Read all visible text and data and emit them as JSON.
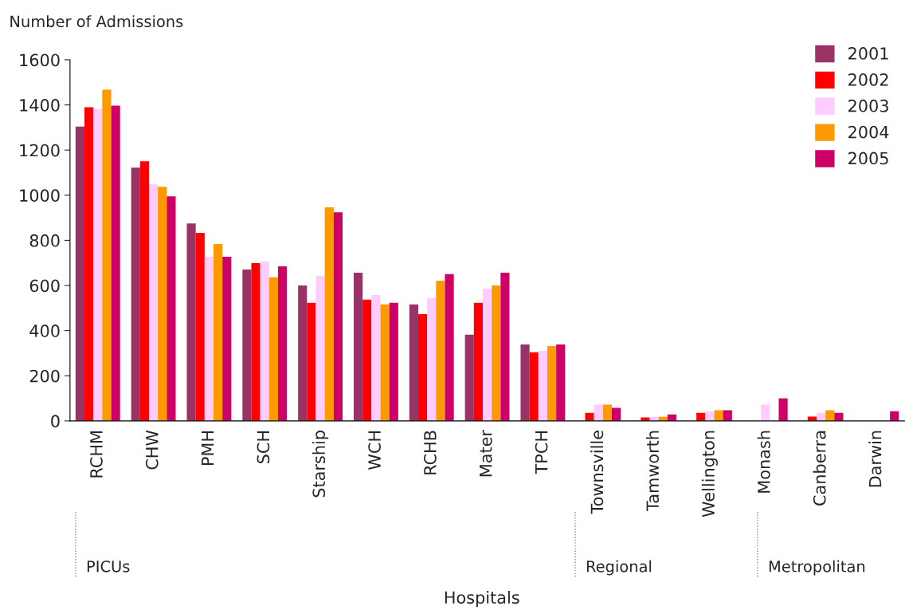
{
  "chart_data": {
    "type": "bar",
    "ylabel": "Number of Admissions",
    "xlabel": "Hospitals",
    "categories": [
      "RCHM",
      "CHW",
      "PMH",
      "SCH",
      "Starship",
      "WCH",
      "RCHB",
      "Mater",
      "TPCH",
      "Townsville",
      "Tamworth",
      "Wellington",
      "Monash",
      "Canberra",
      "Darwin"
    ],
    "series": [
      {
        "name": "2001",
        "color": "#993366",
        "values": [
          1304,
          1122,
          875,
          671,
          600,
          657,
          516,
          382,
          339,
          null,
          null,
          null,
          null,
          null,
          null
        ]
      },
      {
        "name": "2002",
        "color": "#ff0000",
        "values": [
          1390,
          1150,
          833,
          699,
          523,
          537,
          473,
          523,
          304,
          36,
          15,
          36,
          null,
          19,
          null
        ]
      },
      {
        "name": "2003",
        "color": "#ffccff",
        "values": [
          1383,
          1048,
          727,
          706,
          643,
          558,
          544,
          586,
          311,
          72,
          18,
          43,
          72,
          36,
          null
        ]
      },
      {
        "name": "2004",
        "color": "#ff9900",
        "values": [
          1467,
          1037,
          784,
          636,
          946,
          516,
          621,
          600,
          332,
          72,
          18,
          47,
          null,
          47,
          null
        ]
      },
      {
        "name": "2005",
        "color": "#cc0066",
        "values": [
          1397,
          995,
          727,
          685,
          924,
          523,
          650,
          657,
          339,
          58,
          29,
          47,
          100,
          36,
          43
        ]
      }
    ],
    "ylim": [
      0,
      1600
    ],
    "yticks": [
      0,
      200,
      400,
      600,
      800,
      1000,
      1200,
      1400,
      1600
    ],
    "grid": false,
    "legend": "top right",
    "annotations": [
      "PICUs",
      "Regional",
      "Metropolitan"
    ]
  }
}
